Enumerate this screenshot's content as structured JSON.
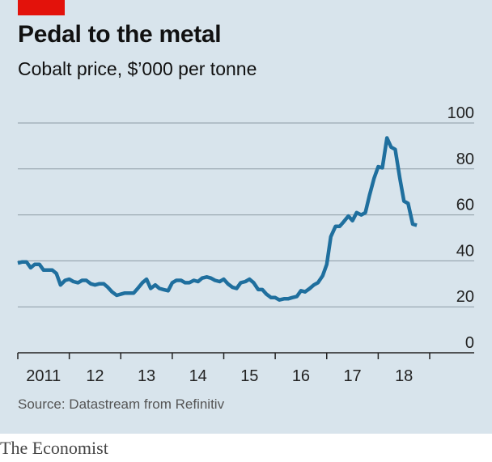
{
  "header": {
    "title": "Pedal to the metal",
    "subtitle": "Cobalt price, $’000 per tonne"
  },
  "source": "Source: Datastream from Refinitiv",
  "footer": "The Economist",
  "colors": {
    "line": "#1f6f9e",
    "panel": "#d8e4ec",
    "accent": "#e3120b",
    "grid": "#8c9aa3"
  },
  "chart_data": {
    "type": "line",
    "title": "Pedal to the metal",
    "subtitle": "Cobalt price, $’000 per tonne",
    "xlabel": "",
    "ylabel": "",
    "ylim": [
      0,
      100
    ],
    "xlim": [
      2011,
      2019
    ],
    "y_ticks": [
      0,
      20,
      40,
      60,
      80,
      100
    ],
    "x_tick_labels": [
      "2011",
      "12",
      "13",
      "14",
      "15",
      "16",
      "17",
      "18"
    ],
    "grid": true,
    "y_axis_side": "right",
    "series": [
      {
        "values": [
          [
            2011.0,
            39
          ],
          [
            2011.08,
            39.5
          ],
          [
            2011.17,
            39.5
          ],
          [
            2011.25,
            37
          ],
          [
            2011.33,
            38.5
          ],
          [
            2011.42,
            38.5
          ],
          [
            2011.5,
            36
          ],
          [
            2011.58,
            36
          ],
          [
            2011.67,
            36
          ],
          [
            2011.75,
            34.5
          ],
          [
            2011.83,
            29.5
          ],
          [
            2011.92,
            31.5
          ],
          [
            2012.0,
            32
          ],
          [
            2012.08,
            31
          ],
          [
            2012.17,
            30.5
          ],
          [
            2012.25,
            31.5
          ],
          [
            2012.33,
            31.5
          ],
          [
            2012.42,
            30
          ],
          [
            2012.5,
            29.5
          ],
          [
            2012.58,
            30
          ],
          [
            2012.67,
            30
          ],
          [
            2012.75,
            28.5
          ],
          [
            2012.83,
            26.5
          ],
          [
            2012.92,
            25
          ],
          [
            2013.0,
            25.5
          ],
          [
            2013.08,
            26
          ],
          [
            2013.17,
            26
          ],
          [
            2013.25,
            26
          ],
          [
            2013.33,
            28
          ],
          [
            2013.42,
            30.5
          ],
          [
            2013.5,
            32
          ],
          [
            2013.58,
            28
          ],
          [
            2013.67,
            29.5
          ],
          [
            2013.75,
            28
          ],
          [
            2013.83,
            27.5
          ],
          [
            2013.92,
            27
          ],
          [
            2014.0,
            30.5
          ],
          [
            2014.08,
            31.5
          ],
          [
            2014.17,
            31.5
          ],
          [
            2014.25,
            30.5
          ],
          [
            2014.33,
            30.5
          ],
          [
            2014.42,
            31.5
          ],
          [
            2014.5,
            31
          ],
          [
            2014.58,
            32.5
          ],
          [
            2014.67,
            33
          ],
          [
            2014.75,
            32.5
          ],
          [
            2014.83,
            31.5
          ],
          [
            2014.92,
            31
          ],
          [
            2015.0,
            32
          ],
          [
            2015.08,
            30
          ],
          [
            2015.17,
            28.5
          ],
          [
            2015.25,
            28
          ],
          [
            2015.33,
            30.5
          ],
          [
            2015.42,
            31
          ],
          [
            2015.5,
            32
          ],
          [
            2015.58,
            30.5
          ],
          [
            2015.67,
            27.5
          ],
          [
            2015.75,
            27.5
          ],
          [
            2015.83,
            25.5
          ],
          [
            2015.92,
            24
          ],
          [
            2016.0,
            24
          ],
          [
            2016.08,
            23
          ],
          [
            2016.17,
            23.5
          ],
          [
            2016.25,
            23.5
          ],
          [
            2016.33,
            24
          ],
          [
            2016.42,
            24.5
          ],
          [
            2016.5,
            27
          ],
          [
            2016.58,
            26.5
          ],
          [
            2016.67,
            28
          ],
          [
            2016.75,
            29.5
          ],
          [
            2016.83,
            30.5
          ],
          [
            2016.92,
            33.5
          ],
          [
            2017.0,
            38.5
          ],
          [
            2017.08,
            50.5
          ],
          [
            2017.17,
            55
          ],
          [
            2017.25,
            55
          ],
          [
            2017.33,
            57
          ],
          [
            2017.42,
            59.5
          ],
          [
            2017.5,
            57.5
          ],
          [
            2017.58,
            61
          ],
          [
            2017.67,
            60
          ],
          [
            2017.75,
            61
          ],
          [
            2017.83,
            68.5
          ],
          [
            2017.92,
            76
          ],
          [
            2018.0,
            81
          ],
          [
            2018.08,
            80.5
          ],
          [
            2018.17,
            93.5
          ],
          [
            2018.25,
            89.5
          ],
          [
            2018.33,
            88.5
          ],
          [
            2018.42,
            76
          ],
          [
            2018.5,
            66
          ],
          [
            2018.58,
            65
          ],
          [
            2018.67,
            56
          ],
          [
            2018.75,
            55.5
          ]
        ]
      }
    ]
  }
}
